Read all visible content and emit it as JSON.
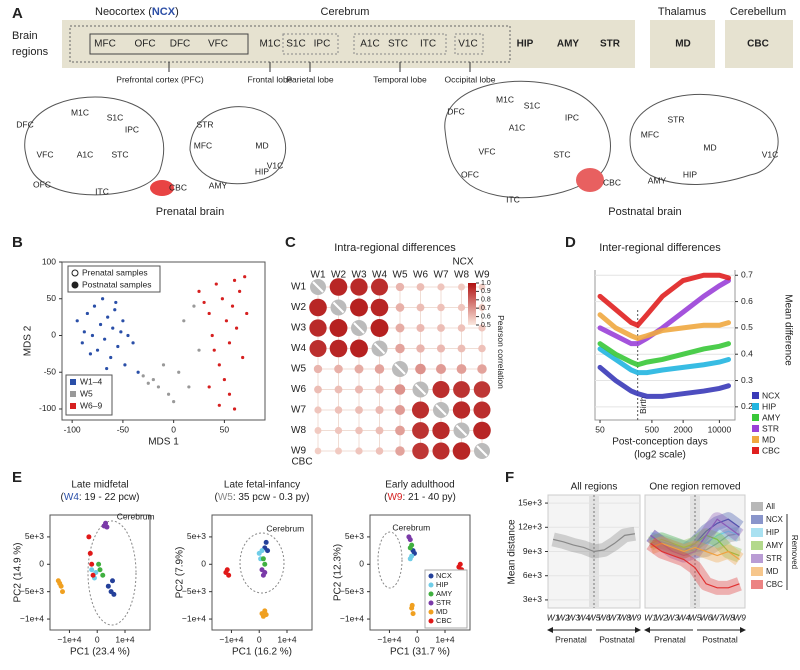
{
  "panel_letters": [
    "A",
    "B",
    "C",
    "D",
    "E",
    "F"
  ],
  "panel_a": {
    "brain_label": [
      "Brain",
      "regions"
    ],
    "neocortex": "Neocortex (",
    "ncx": "NCX",
    "close": ")",
    "cerebrum": "Cerebrum",
    "thalamus": "Thalamus",
    "cerebellum": "Cerebellum",
    "regions": [
      "MFC",
      "OFC",
      "DFC",
      "VFC",
      "M1C",
      "S1C",
      "IPC",
      "A1C",
      "STC",
      "ITC",
      "V1C"
    ],
    "other": [
      "HIP",
      "AMY",
      "STR"
    ],
    "md": "MD",
    "cbc": "CBC",
    "lobes": [
      "Prefrontal cortex (PFC)",
      "Frontal lobe",
      "Parietal lobe",
      "Temporal lobe",
      "Occipital lobe"
    ],
    "prenatal": "Prenatal brain",
    "postnatal": "Postnatal brain",
    "colors": {
      "ncx": "#2c4ea6",
      "hip": "#22b5e0",
      "amy": "#4cb848",
      "str": "#8a44b0",
      "md": "#f0a020",
      "cbc": "#cc1010"
    }
  },
  "chart_data": [
    {
      "type": "scatter",
      "xlabel": "MDS 1",
      "ylabel": "MDS 2",
      "xlim": [
        -110,
        90
      ],
      "ylim": [
        -115,
        100
      ],
      "xticks": [
        -100,
        -50,
        0,
        50
      ],
      "yticks": [
        -100,
        -50,
        0,
        50,
        100
      ],
      "sample_legend": [
        "Prenatal samples",
        "Postnatal samples"
      ],
      "series": [
        {
          "name": "W1–4",
          "color": "#2a4fa8",
          "x": [
            -95,
            -90,
            -85,
            -80,
            -78,
            -75,
            -72,
            -70,
            -68,
            -65,
            -62,
            -60,
            -58,
            -55,
            -52,
            -50,
            -48,
            -45,
            -40,
            -35,
            -88,
            -82,
            -66,
            -57
          ],
          "y": [
            20,
            -10,
            30,
            0,
            40,
            -20,
            15,
            50,
            -5,
            25,
            -30,
            10,
            35,
            -15,
            5,
            20,
            -40,
            0,
            -10,
            -50,
            5,
            -25,
            -45,
            45
          ]
        },
        {
          "name": "W5",
          "color": "#999999",
          "x": [
            -30,
            -20,
            -15,
            -10,
            -5,
            0,
            5,
            10,
            15,
            20,
            25,
            -25
          ],
          "y": [
            -55,
            -60,
            -70,
            -40,
            -80,
            -90,
            -50,
            20,
            -70,
            40,
            -20,
            -65
          ]
        },
        {
          "name": "W6–9",
          "color": "#d62020",
          "x": [
            25,
            30,
            35,
            38,
            40,
            42,
            45,
            48,
            50,
            52,
            55,
            58,
            60,
            62,
            65,
            68,
            70,
            72,
            45,
            55,
            35,
            60
          ],
          "y": [
            60,
            45,
            30,
            0,
            -20,
            70,
            -40,
            50,
            -60,
            20,
            -80,
            40,
            -100,
            10,
            60,
            -30,
            80,
            30,
            -95,
            -10,
            -70,
            75
          ]
        }
      ]
    },
    {
      "type": "heatmap",
      "title": "Intra-regional differences",
      "top_label": "NCX",
      "bottom_label": "CBC",
      "categories": [
        "W1",
        "W2",
        "W3",
        "W4",
        "W5",
        "W6",
        "W7",
        "W8",
        "W9"
      ],
      "category_colors": [
        "#2a4fa8",
        "#2a4fa8",
        "#2a4fa8",
        "#2a4fa8",
        "#888888",
        "#d62020",
        "#d62020",
        "#d62020",
        "#d62020"
      ],
      "values": [
        [
          null,
          0.95,
          0.94,
          0.93,
          0.62,
          0.6,
          0.58,
          0.57,
          0.56
        ],
        [
          0.95,
          null,
          0.96,
          0.95,
          0.63,
          0.6,
          0.59,
          0.58,
          0.57
        ],
        [
          0.94,
          0.96,
          null,
          0.96,
          0.64,
          0.61,
          0.6,
          0.59,
          0.58
        ],
        [
          0.93,
          0.95,
          0.96,
          null,
          0.66,
          0.62,
          0.61,
          0.6,
          0.59
        ],
        [
          0.62,
          0.63,
          0.64,
          0.66,
          null,
          0.7,
          0.68,
          0.67,
          0.66
        ],
        [
          0.6,
          0.6,
          0.61,
          0.62,
          0.7,
          null,
          0.93,
          0.92,
          0.91
        ],
        [
          0.58,
          0.59,
          0.6,
          0.61,
          0.68,
          0.93,
          null,
          0.94,
          0.93
        ],
        [
          0.57,
          0.58,
          0.59,
          0.6,
          0.67,
          0.92,
          0.94,
          null,
          0.95
        ],
        [
          0.56,
          0.57,
          0.58,
          0.59,
          0.66,
          0.91,
          0.93,
          0.95,
          null
        ]
      ],
      "colorbar_label": "Pearson correlation",
      "clim": [
        0.5,
        1
      ],
      "colorbar_ticks": [
        0.5,
        0.6,
        0.7,
        0.8,
        0.9,
        {
          "value": 1,
          "label": "1.0"
        }
      ],
      "colors": [
        "#fbe8de",
        "#b01010"
      ]
    },
    {
      "type": "line",
      "title": "Inter-regional differences",
      "xlabel": "Post-conception days",
      "xlabel2": "(log2 scale)",
      "ylabel": "Mean difference",
      "log_x": true,
      "xlim": [
        40,
        20000
      ],
      "ylim": [
        0.15,
        0.72
      ],
      "xticks": [
        50,
        500,
        2000,
        10000
      ],
      "yticks": [
        0.2,
        0.3,
        0.4,
        0.5,
        0.6,
        0.7
      ],
      "annotation": {
        "text": "Birth",
        "x": 266
      },
      "x": [
        50,
        100,
        200,
        266,
        400,
        800,
        2000,
        5000,
        10000,
        15000
      ],
      "series": [
        {
          "name": "NCX",
          "color": "#3a3ab8",
          "values": [
            0.35,
            0.3,
            0.26,
            0.25,
            0.24,
            0.24,
            0.25,
            0.26,
            0.27,
            0.28
          ]
        },
        {
          "name": "HIP",
          "color": "#22b5e0",
          "values": [
            0.42,
            0.38,
            0.34,
            0.33,
            0.33,
            0.34,
            0.35,
            0.36,
            0.37,
            0.38
          ]
        },
        {
          "name": "AMY",
          "color": "#38c838",
          "values": [
            0.44,
            0.4,
            0.37,
            0.36,
            0.37,
            0.38,
            0.4,
            0.42,
            0.43,
            0.44
          ]
        },
        {
          "name": "STR",
          "color": "#9a40d8",
          "values": [
            0.5,
            0.47,
            0.44,
            0.44,
            0.46,
            0.5,
            0.56,
            0.62,
            0.66,
            0.68
          ]
        },
        {
          "name": "MD",
          "color": "#f0a840",
          "values": [
            0.55,
            0.5,
            0.47,
            0.46,
            0.47,
            0.49,
            0.5,
            0.51,
            0.51,
            0.52
          ]
        },
        {
          "name": "CBC",
          "color": "#e02020",
          "values": [
            0.62,
            0.57,
            0.52,
            0.51,
            0.55,
            0.62,
            0.68,
            0.7,
            0.7,
            0.69
          ]
        }
      ]
    },
    {
      "type": "scatter",
      "title": "Late midfetal",
      "subtitle": [
        "(",
        "W4",
        ": 19 - 22 pcw)"
      ],
      "subtitle_color": "#2a4fa8",
      "xlabel": "PC1 (23.4 %)",
      "ylabel": "PC2 (14.9 %)",
      "annotation": "Cerebrum",
      "xlim": [
        -17000,
        19000
      ],
      "ylim": [
        -12000,
        9000
      ],
      "xticks": [
        {
          "value": -10000,
          "label": "−1e+4"
        },
        0,
        {
          "value": 10000,
          "label": "1e+4"
        }
      ],
      "yticks": [
        {
          "value": -10000,
          "label": "−1e+4"
        },
        {
          "value": -5000,
          "label": "−5e+3"
        },
        0,
        {
          "value": 5000,
          "label": "5e+3"
        }
      ],
      "series": [
        {
          "name": "NCX",
          "color": "#24409a",
          "x": [
            4000,
            5000,
            6000,
            5500
          ],
          "y": [
            -4000,
            -5000,
            -5500,
            -3000
          ]
        },
        {
          "name": "HIP",
          "color": "#6fcde8",
          "x": [
            -2000,
            -1000,
            -500
          ],
          "y": [
            -1000,
            -2500,
            -1500
          ]
        },
        {
          "name": "AMY",
          "color": "#40b040",
          "x": [
            1000,
            2000,
            500
          ],
          "y": [
            -1000,
            -2000,
            0
          ]
        },
        {
          "name": "STR",
          "color": "#7a3aa8",
          "x": [
            2500,
            3000,
            3500
          ],
          "y": [
            7000,
            7500,
            6800
          ]
        },
        {
          "name": "MD",
          "color": "#f0a020",
          "x": [
            -14000,
            -13000,
            -12500,
            -13500
          ],
          "y": [
            -3000,
            -4000,
            -5000,
            -3500
          ]
        },
        {
          "name": "CBC",
          "color": "#e01818",
          "x": [
            -3000,
            -2500,
            -2000,
            -1500
          ],
          "y": [
            5000,
            2000,
            0,
            -2000
          ]
        }
      ]
    },
    {
      "type": "scatter",
      "title": "Late fetal-infancy",
      "subtitle": [
        "(",
        "W5",
        ": 35 pcw - 0.3 py)"
      ],
      "subtitle_color": "#888888",
      "xlabel": "PC1 (16.2 %)",
      "ylabel": "PC2 (7.9%)",
      "annotation": "Cerebrum",
      "xlim": [
        -17000,
        19000
      ],
      "ylim": [
        -12000,
        9000
      ],
      "xticks": [
        {
          "value": -10000,
          "label": "−1e+4"
        },
        0,
        {
          "value": 10000,
          "label": "1e+4"
        }
      ],
      "yticks": [
        {
          "value": -10000,
          "label": "−1e+4"
        },
        {
          "value": -5000,
          "label": "−5e+3"
        },
        0,
        {
          "value": 5000,
          "label": "5e+3"
        }
      ],
      "series": [
        {
          "name": "NCX",
          "color": "#24409a",
          "x": [
            2000,
            2500,
            3000
          ],
          "y": [
            3000,
            4000,
            2500
          ]
        },
        {
          "name": "HIP",
          "color": "#6fcde8",
          "x": [
            0,
            500,
            1000
          ],
          "y": [
            2000,
            1000,
            2500
          ]
        },
        {
          "name": "AMY",
          "color": "#40b040",
          "x": [
            1500,
            2000
          ],
          "y": [
            1000,
            0
          ]
        },
        {
          "name": "STR",
          "color": "#7a3aa8",
          "x": [
            1000,
            1500,
            2000
          ],
          "y": [
            -1000,
            -2000,
            -1500
          ]
        },
        {
          "name": "MD",
          "color": "#f0a020",
          "x": [
            1000,
            1500,
            2000,
            2500
          ],
          "y": [
            -9000,
            -9500,
            -8500,
            -9200
          ]
        },
        {
          "name": "CBC",
          "color": "#e01818",
          "x": [
            -12000,
            -11000,
            -11500
          ],
          "y": [
            -1500,
            -2000,
            -1000
          ]
        }
      ]
    },
    {
      "type": "scatter",
      "title": "Early adulthood",
      "subtitle": [
        "(",
        "W9",
        ": 21 - 40 py)"
      ],
      "subtitle_color": "#d62020",
      "xlabel": "PC1 (31.7 %)",
      "ylabel": "PC2 (12.3%)",
      "annotation": "Cerebrum",
      "legend": true,
      "xlim": [
        -17000,
        19000
      ],
      "ylim": [
        -12000,
        9000
      ],
      "xticks": [
        {
          "value": -10000,
          "label": "−1e+4"
        },
        0,
        {
          "value": 10000,
          "label": "1e+4"
        }
      ],
      "yticks": [
        {
          "value": -10000,
          "label": "−1e+4"
        },
        {
          "value": -5000,
          "label": "−5e+3"
        },
        0,
        {
          "value": 5000,
          "label": "5e+3"
        }
      ],
      "series": [
        {
          "name": "NCX",
          "color": "#24409a",
          "x": [
            -1000,
            -1500
          ],
          "y": [
            2000,
            2500
          ]
        },
        {
          "name": "HIP",
          "color": "#6fcde8",
          "x": [
            -2500,
            -2000
          ],
          "y": [
            1000,
            1500
          ]
        },
        {
          "name": "AMY",
          "color": "#40b040",
          "x": [
            -2500,
            -2000
          ],
          "y": [
            3000,
            3500
          ]
        },
        {
          "name": "STR",
          "color": "#7a3aa8",
          "x": [
            -3000,
            -2500
          ],
          "y": [
            5000,
            4500
          ]
        },
        {
          "name": "MD",
          "color": "#f0a020",
          "x": [
            -2000,
            -1500,
            -1800
          ],
          "y": [
            -8000,
            -9000,
            -7500
          ]
        },
        {
          "name": "CBC",
          "color": "#e01818",
          "x": [
            15000,
            15500,
            16000
          ],
          "y": [
            -500,
            0,
            -1000
          ]
        }
      ]
    },
    {
      "type": "band",
      "title": "All regions",
      "ylabel": "Mean distance",
      "periods": [
        "Prenatal",
        "Postnatal"
      ],
      "categories": [
        "W1",
        "W2",
        "W3",
        "W4",
        "W5",
        "W6",
        "W7",
        "W8",
        "W9"
      ],
      "category_colors": [
        "#2a4fa8",
        "#2a4fa8",
        "#2a4fa8",
        "#2a4fa8",
        "#888888",
        "#d62020",
        "#d62020",
        "#d62020",
        "#d62020"
      ],
      "ylim": [
        2000,
        16000
      ],
      "yticks": [
        {
          "value": 3000,
          "label": "3e+3"
        },
        {
          "value": 6000,
          "label": "6e+3"
        },
        {
          "value": 9000,
          "label": "9e+3"
        },
        {
          "value": 12000,
          "label": "12e+3"
        },
        {
          "value": 15000,
          "label": "15e+3"
        }
      ],
      "series": [
        {
          "name": "All",
          "color": "#888888",
          "values": [
            10500,
            10200,
            9800,
            9500,
            9000,
            9200,
            10000,
            11000,
            11200
          ]
        }
      ]
    },
    {
      "type": "band",
      "title": "One region removed",
      "periods": [
        "Prenatal",
        "Postnatal"
      ],
      "legend_note": "Removed",
      "categories": [
        "W1",
        "W2",
        "W3",
        "W4",
        "W5",
        "W6",
        "W7",
        "W8",
        "W9"
      ],
      "category_colors": [
        "#2a4fa8",
        "#2a4fa8",
        "#2a4fa8",
        "#2a4fa8",
        "#888888",
        "#d62020",
        "#d62020",
        "#d62020",
        "#d62020"
      ],
      "ylim": [
        2000,
        16000
      ],
      "series": [
        {
          "name": "All",
          "color": "#888888",
          "values": [
            10500,
            10200,
            9800,
            9500,
            9000,
            9200,
            10000,
            11000,
            11200
          ]
        },
        {
          "name": "NCX",
          "color": "#3a4fa8",
          "values": [
            11000,
            10000,
            9500,
            9000,
            10000,
            11500,
            12500,
            13000,
            12000
          ]
        },
        {
          "name": "HIP",
          "color": "#6fcde8",
          "values": [
            10500,
            10500,
            10000,
            9500,
            9500,
            10000,
            11000,
            11500,
            11000
          ]
        },
        {
          "name": "AMY",
          "color": "#80c040",
          "values": [
            10000,
            10500,
            10000,
            9500,
            10000,
            11000,
            10500,
            9000,
            8500
          ]
        },
        {
          "name": "STR",
          "color": "#8a5ab8",
          "values": [
            11000,
            10000,
            9000,
            8500,
            9000,
            11000,
            13000,
            12000,
            11000
          ]
        },
        {
          "name": "MD",
          "color": "#f0a040",
          "values": [
            9500,
            10000,
            9500,
            9000,
            9500,
            9000,
            8500,
            9000,
            8000
          ]
        },
        {
          "name": "CBC",
          "color": "#e03030",
          "values": [
            10000,
            9000,
            8500,
            8000,
            7000,
            5000,
            4500,
            4500,
            5000
          ]
        }
      ]
    }
  ]
}
